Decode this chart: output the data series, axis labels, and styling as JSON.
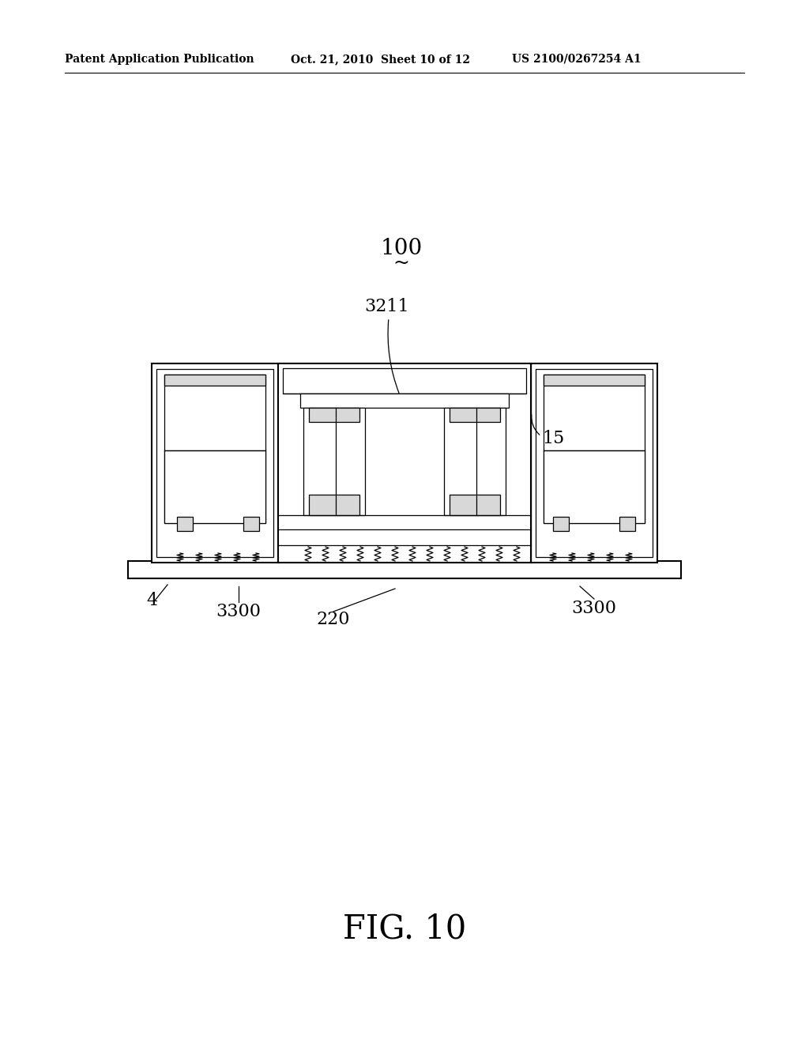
{
  "bg_color": "#ffffff",
  "lc": "#000000",
  "header_left": "Patent Application Publication",
  "header_mid": "Oct. 21, 2010  Sheet 10 of 12",
  "header_right": "US 2100/0267254 A1",
  "fig_label": "FIG. 10",
  "label_100": "100",
  "label_tilde": "~",
  "label_3211": "3211",
  "label_15": "15",
  "label_4": "4",
  "label_3300a": "3300",
  "label_220": "220",
  "label_3300b": "3300",
  "gray_fill": "#bbbbbb",
  "white_fill": "#ffffff",
  "light_gray": "#d8d8d8"
}
